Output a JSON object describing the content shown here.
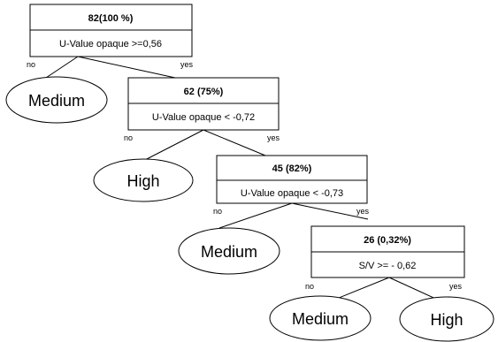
{
  "nodes": [
    {
      "count": "82(100 %)",
      "condition": "U-Value opaque >=0,56"
    },
    {
      "count": "62 (75%)",
      "condition": "U-Value opaque < -0,72"
    },
    {
      "count": "45 (82%)",
      "condition": "U-Value opaque < -0,73"
    },
    {
      "count": "26 (0,32%)",
      "condition": "S/V >= - 0,62"
    }
  ],
  "branches": {
    "no": "no",
    "yes": "yes"
  },
  "leaves": [
    {
      "label": "Medium"
    },
    {
      "label": "High"
    },
    {
      "label": "Medium"
    },
    {
      "label": "Medium"
    },
    {
      "label": "High"
    }
  ]
}
